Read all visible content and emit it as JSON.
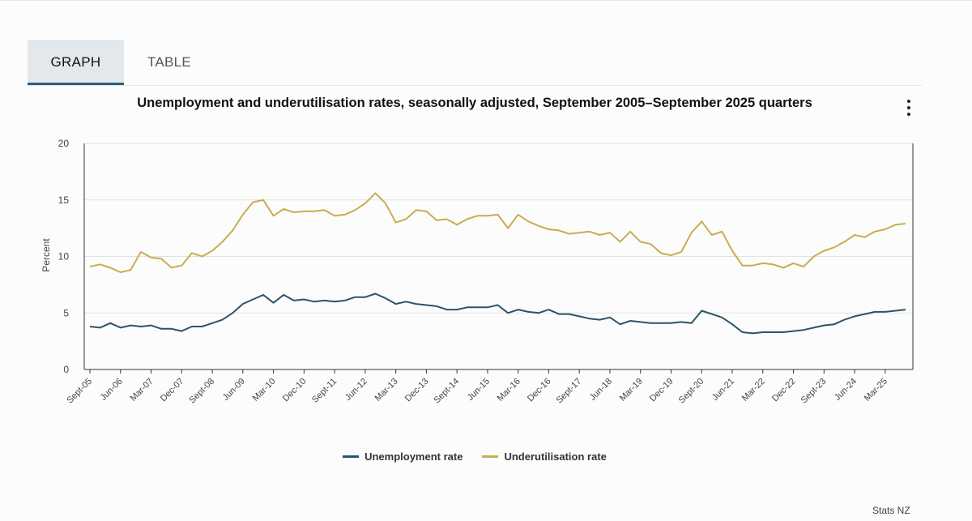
{
  "tabs": {
    "graph": "GRAPH",
    "table": "TABLE"
  },
  "menu_icon": "more-vertical-icon",
  "credit": "Stats NZ",
  "colors": {
    "unemployment": "#2c5468",
    "underutilisation": "#c9ad4f",
    "accent": "#2c5f7d"
  },
  "chart_data": {
    "type": "line",
    "title": "Unemployment and underutilisation rates, seasonally adjusted, September 2005–September 2025 quarters",
    "ylabel": "Percent",
    "xlabel": "",
    "ylim": [
      0,
      20
    ],
    "yticks": [
      0,
      5,
      10,
      15,
      20
    ],
    "grid": true,
    "legend_position": "bottom",
    "x_tick_labels": [
      "Sept-05",
      "Jun-06",
      "Mar-07",
      "Dec-07",
      "Sept-08",
      "Jun-09",
      "Mar-10",
      "Dec-10",
      "Sept-11",
      "Jun-12",
      "Mar-13",
      "Dec-13",
      "Sept-14",
      "Jun-15",
      "Mar-16",
      "Dec-16",
      "Sept-17",
      "Jun-18",
      "Mar-19",
      "Dec-19",
      "Sept-20",
      "Jun-21",
      "Mar-22",
      "Dec-22",
      "Sept-23",
      "Jun-24",
      "Mar-25"
    ],
    "series": [
      {
        "name": "Unemployment rate",
        "values": [
          3.8,
          3.7,
          4.1,
          3.7,
          3.9,
          3.8,
          3.9,
          3.6,
          3.6,
          3.4,
          3.8,
          3.8,
          4.1,
          4.4,
          5.0,
          5.8,
          6.2,
          6.6,
          5.9,
          6.6,
          6.1,
          6.2,
          6.0,
          6.1,
          6.0,
          6.1,
          6.4,
          6.4,
          6.7,
          6.3,
          5.8,
          6.0,
          5.8,
          5.7,
          5.6,
          5.3,
          5.3,
          5.5,
          5.5,
          5.5,
          5.7,
          5.0,
          5.3,
          5.1,
          5.0,
          5.3,
          4.9,
          4.9,
          4.7,
          4.5,
          4.4,
          4.6,
          4.0,
          4.3,
          4.2,
          4.1,
          4.1,
          4.1,
          4.2,
          4.1,
          5.2,
          4.9,
          4.6,
          4.0,
          3.3,
          3.2,
          3.3,
          3.3,
          3.3,
          3.4,
          3.5,
          3.7,
          3.9,
          4.0,
          4.4,
          4.7,
          4.9,
          5.1,
          5.1,
          5.2,
          5.3
        ]
      },
      {
        "name": "Underutilisation rate",
        "values": [
          9.1,
          9.3,
          9.0,
          8.6,
          8.8,
          10.4,
          9.9,
          9.8,
          9.0,
          9.2,
          10.3,
          10.0,
          10.5,
          11.3,
          12.3,
          13.7,
          14.8,
          15.0,
          13.6,
          14.2,
          13.9,
          14.0,
          14.0,
          14.1,
          13.6,
          13.7,
          14.1,
          14.7,
          15.6,
          14.7,
          13.0,
          13.3,
          14.1,
          14.0,
          13.2,
          13.3,
          12.8,
          13.3,
          13.6,
          13.6,
          13.7,
          12.5,
          13.7,
          13.1,
          12.7,
          12.4,
          12.3,
          12.0,
          12.1,
          12.2,
          11.9,
          12.1,
          11.3,
          12.2,
          11.3,
          11.1,
          10.3,
          10.1,
          10.4,
          12.1,
          13.1,
          11.9,
          12.2,
          10.5,
          9.2,
          9.2,
          9.4,
          9.3,
          9.0,
          9.4,
          9.1,
          10.0,
          10.5,
          10.8,
          11.3,
          11.9,
          11.7,
          12.2,
          12.4,
          12.8,
          12.9
        ]
      }
    ]
  }
}
